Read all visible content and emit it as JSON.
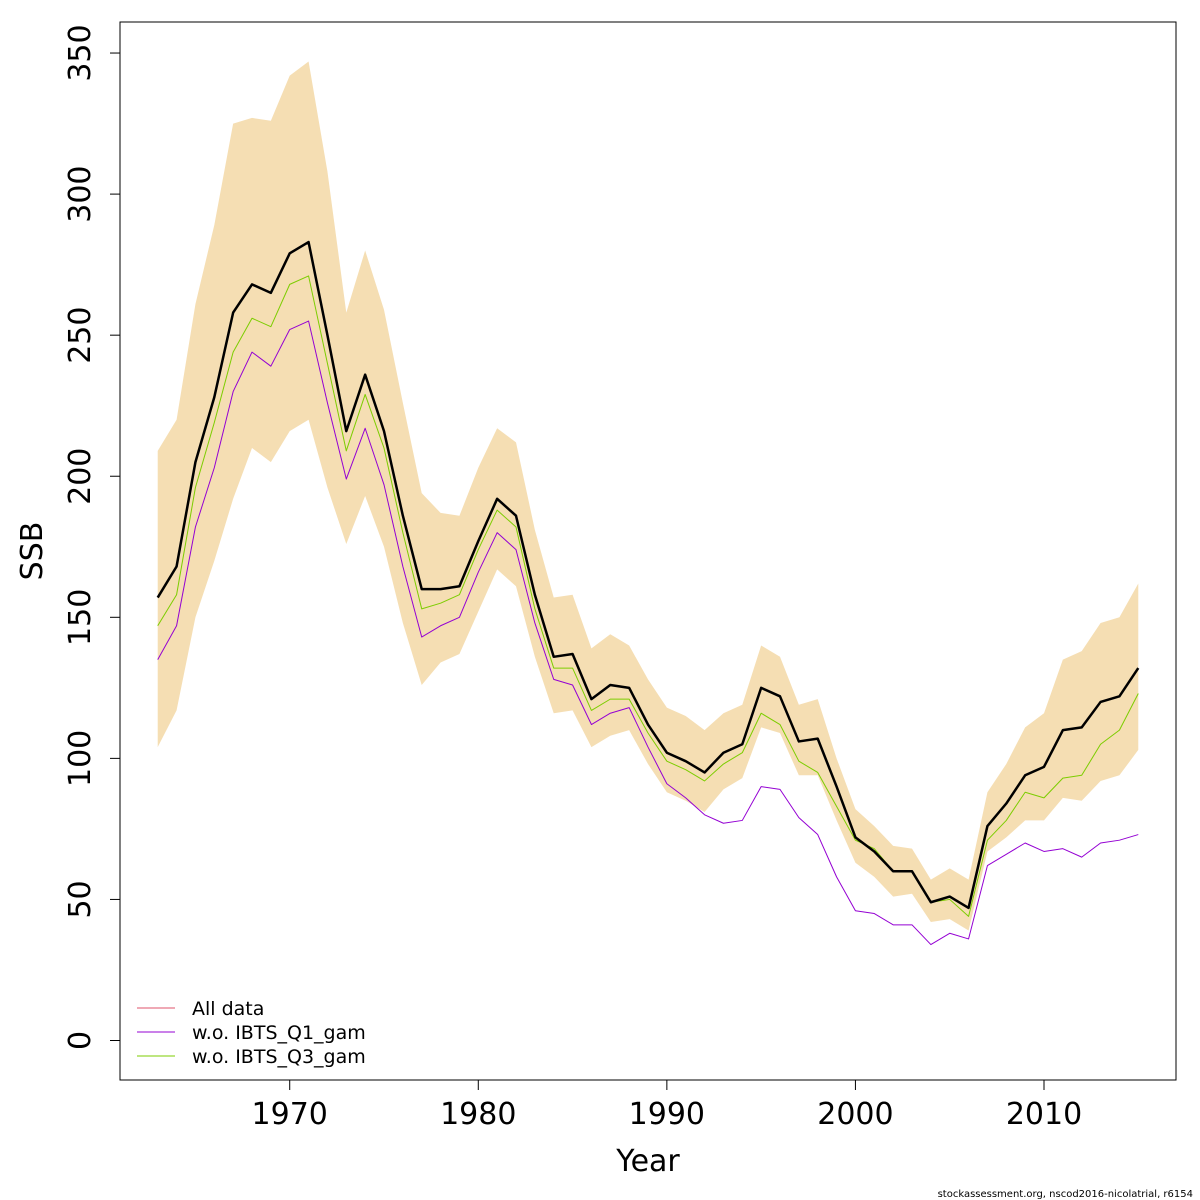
{
  "chart_data": {
    "type": "line",
    "xlabel": "Year",
    "ylabel": "SSB",
    "xlim": [
      1961,
      2017
    ],
    "ylim": [
      -14,
      361
    ],
    "x_ticks": [
      1970,
      1980,
      1990,
      2000,
      2010
    ],
    "y_ticks": [
      0,
      50,
      100,
      150,
      200,
      250,
      300,
      350
    ],
    "grid": false,
    "legend_position": "bottom-left",
    "band_color": "#f5deb3",
    "x": [
      1963,
      1964,
      1965,
      1966,
      1967,
      1968,
      1969,
      1970,
      1971,
      1972,
      1973,
      1974,
      1975,
      1976,
      1977,
      1978,
      1979,
      1980,
      1981,
      1982,
      1983,
      1984,
      1985,
      1986,
      1987,
      1988,
      1989,
      1990,
      1991,
      1992,
      1993,
      1994,
      1995,
      1996,
      1997,
      1998,
      1999,
      2000,
      2001,
      2002,
      2003,
      2004,
      2005,
      2006,
      2007,
      2008,
      2009,
      2010,
      2011,
      2012,
      2013,
      2014,
      2015
    ],
    "confidence_band": {
      "lower": [
        104,
        117,
        150,
        170,
        192,
        210,
        205,
        216,
        220,
        196,
        176,
        193,
        175,
        148,
        126,
        134,
        137,
        152,
        167,
        161,
        136,
        116,
        117,
        104,
        108,
        110,
        98,
        88,
        85,
        81,
        89,
        93,
        111,
        109,
        94,
        94,
        78,
        63,
        58,
        51,
        52,
        42,
        43,
        39,
        67,
        72,
        78,
        78,
        86,
        85,
        92,
        94,
        103
      ],
      "upper": [
        209,
        220,
        261,
        289,
        325,
        327,
        326,
        342,
        347,
        308,
        258,
        280,
        259,
        226,
        194,
        187,
        186,
        203,
        217,
        212,
        181,
        157,
        158,
        139,
        144,
        140,
        128,
        118,
        115,
        110,
        116,
        119,
        140,
        136,
        119,
        121,
        100,
        82,
        76,
        69,
        68,
        57,
        61,
        57,
        88,
        98,
        111,
        116,
        135,
        138,
        148,
        150,
        162
      ]
    },
    "series": [
      {
        "name": "All data",
        "color": "#df536b",
        "width": 2.5,
        "values": [
          157,
          168,
          205,
          228,
          258,
          268,
          265,
          279,
          283,
          250,
          216,
          236,
          216,
          186,
          160,
          160,
          161,
          177,
          192,
          186,
          158,
          136,
          137,
          121,
          126,
          125,
          112,
          102,
          99,
          95,
          102,
          105,
          125,
          122,
          106,
          107,
          90,
          72,
          67,
          60,
          60,
          49,
          51,
          47,
          76,
          84,
          94,
          97,
          110,
          111,
          120,
          122,
          132
        ]
      },
      {
        "name": "w.o. IBTS_Q1_gam",
        "color": "#9400d3",
        "width": 1,
        "values": [
          135,
          147,
          182,
          203,
          230,
          244,
          239,
          252,
          255,
          226,
          199,
          217,
          197,
          168,
          143,
          147,
          150,
          166,
          180,
          174,
          148,
          128,
          126,
          112,
          116,
          118,
          104,
          91,
          86,
          80,
          77,
          78,
          90,
          89,
          79,
          73,
          58,
          46,
          45,
          41,
          41,
          34,
          38,
          36,
          62,
          66,
          70,
          67,
          68,
          65,
          70,
          71,
          73
        ]
      },
      {
        "name": "w.o. IBTS_Q3_gam",
        "color": "#7ccd00",
        "width": 1,
        "values": [
          147,
          158,
          196,
          219,
          244,
          256,
          253,
          268,
          271,
          240,
          209,
          229,
          210,
          180,
          153,
          155,
          158,
          174,
          188,
          182,
          153,
          132,
          132,
          117,
          121,
          121,
          109,
          99,
          96,
          92,
          98,
          102,
          116,
          112,
          99,
          95,
          83,
          71,
          68,
          60,
          60,
          49,
          50,
          44,
          71,
          78,
          88,
          86,
          93,
          94,
          105,
          110,
          123
        ]
      }
    ]
  },
  "footer": "stockassessment.org, nscod2016-nicolatrial, r6154"
}
